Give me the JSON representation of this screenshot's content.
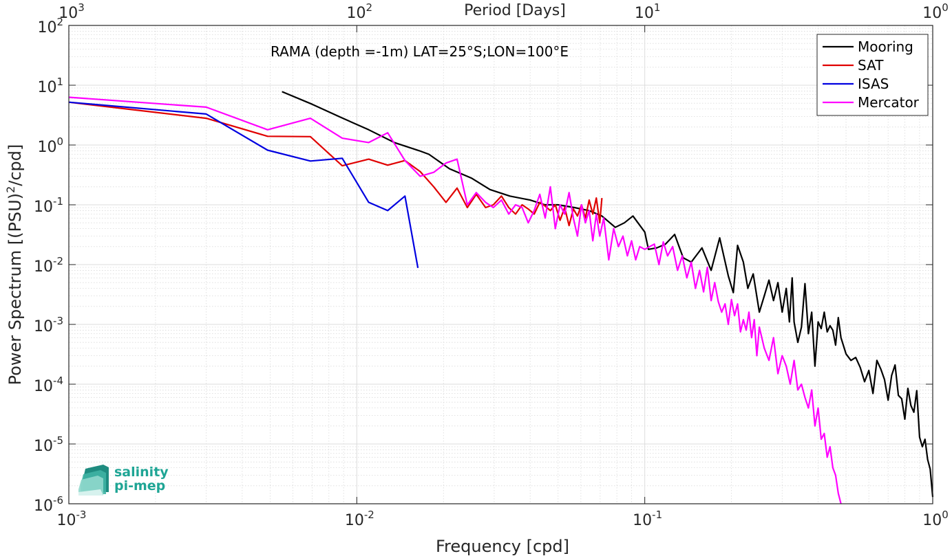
{
  "chart_data": {
    "type": "line",
    "title": "",
    "annotation": "RAMA (depth =-1m) LAT=25°S;LON=100°E",
    "xlabel": "Frequency [cpd]",
    "ylabel_main": "Power Spectrum [(PSU)",
    "ylabel_sup": "2",
    "ylabel_tail": "/cpd]",
    "top_xlabel": "Period [Days]",
    "x_scale": "log",
    "y_scale": "log",
    "xlim": [
      0.001,
      1
    ],
    "ylim": [
      1e-06,
      100
    ],
    "grid": true,
    "legend_position": "top-right",
    "x_ticks": [
      {
        "value": 0.001,
        "base": "10",
        "exp": "-3"
      },
      {
        "value": 0.01,
        "base": "10",
        "exp": "-2"
      },
      {
        "value": 0.1,
        "base": "10",
        "exp": "-1"
      },
      {
        "value": 1,
        "base": "10",
        "exp": "0"
      }
    ],
    "y_ticks": [
      {
        "value": 100,
        "base": "10",
        "exp": "2"
      },
      {
        "value": 10,
        "base": "10",
        "exp": "1"
      },
      {
        "value": 1,
        "base": "10",
        "exp": "0"
      },
      {
        "value": 0.1,
        "base": "10",
        "exp": "-1"
      },
      {
        "value": 0.01,
        "base": "10",
        "exp": "-2"
      },
      {
        "value": 0.001,
        "base": "10",
        "exp": "-3"
      },
      {
        "value": 0.0001,
        "base": "10",
        "exp": "-4"
      },
      {
        "value": 1e-05,
        "base": "10",
        "exp": "-5"
      },
      {
        "value": 1e-06,
        "base": "10",
        "exp": "-6"
      }
    ],
    "top_ticks": [
      {
        "value": 0.001,
        "base": "10",
        "exp": "3"
      },
      {
        "value": 0.01,
        "base": "10",
        "exp": "2"
      },
      {
        "value": 0.1,
        "base": "10",
        "exp": "1"
      },
      {
        "value": 1,
        "base": "10",
        "exp": "0"
      }
    ],
    "series": [
      {
        "name": "Mooring",
        "color": "#000000",
        "x": [
          0.0055,
          0.007,
          0.0088,
          0.011,
          0.0135,
          0.0165,
          0.0178,
          0.021,
          0.025,
          0.029,
          0.034,
          0.04,
          0.045,
          0.05,
          0.057,
          0.064,
          0.071,
          0.079,
          0.085,
          0.091,
          0.1,
          0.103,
          0.11,
          0.118,
          0.127,
          0.136,
          0.145,
          0.158,
          0.17,
          0.182,
          0.195,
          0.203,
          0.21,
          0.22,
          0.228,
          0.238,
          0.25,
          0.26,
          0.27,
          0.28,
          0.29,
          0.3,
          0.31,
          0.318,
          0.325,
          0.33,
          0.34,
          0.35,
          0.36,
          0.37,
          0.38,
          0.39,
          0.4,
          0.41,
          0.42,
          0.43,
          0.44,
          0.45,
          0.46,
          0.47,
          0.48,
          0.5,
          0.52,
          0.54,
          0.56,
          0.58,
          0.6,
          0.62,
          0.64,
          0.66,
          0.68,
          0.7,
          0.72,
          0.74,
          0.76,
          0.78,
          0.8,
          0.82,
          0.84,
          0.86,
          0.88,
          0.9,
          0.92,
          0.94,
          0.96,
          0.98,
          1.0
        ],
        "y": [
          7.8,
          4.8,
          2.9,
          1.8,
          1.1,
          0.8,
          0.7,
          0.4,
          0.28,
          0.18,
          0.14,
          0.12,
          0.1,
          0.1,
          0.09,
          0.08,
          0.065,
          0.042,
          0.05,
          0.065,
          0.035,
          0.018,
          0.019,
          0.022,
          0.032,
          0.013,
          0.011,
          0.019,
          0.008,
          0.028,
          0.0065,
          0.0034,
          0.021,
          0.011,
          0.004,
          0.007,
          0.0016,
          0.003,
          0.0055,
          0.0025,
          0.005,
          0.0016,
          0.004,
          0.0011,
          0.006,
          0.0011,
          0.0005,
          0.0009,
          0.0048,
          0.0007,
          0.0016,
          0.0002,
          0.0011,
          0.00085,
          0.0016,
          0.00075,
          0.00095,
          0.0008,
          0.00045,
          0.0013,
          0.0006,
          0.00032,
          0.00025,
          0.00028,
          0.00019,
          0.00011,
          0.00017,
          7e-05,
          0.00025,
          0.00018,
          0.00012,
          5.4e-05,
          0.00014,
          0.00021,
          6.5e-05,
          5.7e-05,
          2.6e-05,
          8.5e-05,
          4.4e-05,
          3.4e-05,
          7.8e-05,
          1.3e-05,
          9e-06,
          1.2e-05,
          5.5e-06,
          3.8e-06,
          1.3e-06
        ]
      },
      {
        "name": "SAT",
        "color": "#e00000",
        "x": [
          0.001,
          0.003,
          0.0049,
          0.0069,
          0.0089,
          0.011,
          0.0128,
          0.0147,
          0.0166,
          0.0185,
          0.0204,
          0.0223,
          0.0242,
          0.026,
          0.028,
          0.0298,
          0.0318,
          0.0337,
          0.0356,
          0.0375,
          0.0394,
          0.0413,
          0.0432,
          0.0451,
          0.047,
          0.0489,
          0.0508,
          0.0527,
          0.0546,
          0.0565,
          0.0584,
          0.0603,
          0.0622,
          0.0641,
          0.066,
          0.0679,
          0.0698,
          0.071
        ],
        "y": [
          5.2,
          2.8,
          1.4,
          1.38,
          0.45,
          0.58,
          0.46,
          0.55,
          0.36,
          0.2,
          0.11,
          0.19,
          0.09,
          0.15,
          0.09,
          0.1,
          0.14,
          0.09,
          0.07,
          0.1,
          0.085,
          0.07,
          0.11,
          0.095,
          0.08,
          0.1,
          0.055,
          0.09,
          0.045,
          0.085,
          0.065,
          0.1,
          0.06,
          0.12,
          0.07,
          0.13,
          0.05,
          0.13
        ]
      },
      {
        "name": "ISAS",
        "color": "#0000e0",
        "x": [
          0.001,
          0.003,
          0.0049,
          0.0069,
          0.0089,
          0.011,
          0.0128,
          0.0147,
          0.0163
        ],
        "y": [
          5.2,
          3.3,
          0.82,
          0.54,
          0.6,
          0.11,
          0.08,
          0.14,
          0.0088
        ]
      },
      {
        "name": "Mercator",
        "color": "#ff00ff",
        "x": [
          0.001,
          0.003,
          0.0049,
          0.0069,
          0.0089,
          0.011,
          0.0128,
          0.0147,
          0.0166,
          0.0185,
          0.0204,
          0.0223,
          0.0242,
          0.026,
          0.028,
          0.0298,
          0.0318,
          0.0337,
          0.0356,
          0.0375,
          0.0394,
          0.0413,
          0.0432,
          0.0451,
          0.047,
          0.0489,
          0.0508,
          0.0527,
          0.0546,
          0.0565,
          0.0584,
          0.0603,
          0.0622,
          0.0641,
          0.066,
          0.0679,
          0.0698,
          0.072,
          0.075,
          0.078,
          0.081,
          0.084,
          0.087,
          0.09,
          0.093,
          0.096,
          0.1,
          0.104,
          0.108,
          0.112,
          0.116,
          0.12,
          0.125,
          0.13,
          0.135,
          0.14,
          0.145,
          0.15,
          0.155,
          0.16,
          0.165,
          0.17,
          0.175,
          0.18,
          0.185,
          0.19,
          0.195,
          0.2,
          0.205,
          0.21,
          0.215,
          0.22,
          0.225,
          0.23,
          0.235,
          0.24,
          0.245,
          0.25,
          0.26,
          0.27,
          0.28,
          0.29,
          0.3,
          0.31,
          0.32,
          0.33,
          0.34,
          0.35,
          0.36,
          0.37,
          0.38,
          0.39,
          0.4,
          0.41,
          0.42,
          0.43,
          0.44,
          0.45,
          0.46,
          0.47,
          0.48
        ],
        "y": [
          6.3,
          4.3,
          1.8,
          2.8,
          1.3,
          1.1,
          1.6,
          0.55,
          0.3,
          0.35,
          0.5,
          0.58,
          0.1,
          0.16,
          0.11,
          0.09,
          0.12,
          0.07,
          0.1,
          0.09,
          0.05,
          0.08,
          0.15,
          0.06,
          0.2,
          0.04,
          0.1,
          0.07,
          0.16,
          0.06,
          0.03,
          0.1,
          0.05,
          0.08,
          0.025,
          0.07,
          0.03,
          0.06,
          0.012,
          0.04,
          0.02,
          0.03,
          0.014,
          0.025,
          0.012,
          0.02,
          0.018,
          0.02,
          0.022,
          0.01,
          0.024,
          0.014,
          0.02,
          0.008,
          0.014,
          0.006,
          0.011,
          0.004,
          0.008,
          0.0035,
          0.009,
          0.0025,
          0.005,
          0.0024,
          0.0016,
          0.0022,
          0.001,
          0.0026,
          0.0014,
          0.0022,
          0.00075,
          0.0012,
          0.0008,
          0.0016,
          0.0006,
          0.0012,
          0.0003,
          0.0009,
          0.0004,
          0.00025,
          0.0006,
          0.00015,
          0.0003,
          0.0002,
          0.0001,
          0.00025,
          8e-05,
          0.0001,
          6e-05,
          4e-05,
          8e-05,
          2e-05,
          4e-05,
          1.2e-05,
          1.5e-05,
          6e-06,
          9e-06,
          4e-06,
          3e-06,
          1.5e-06,
          9e-07
        ]
      }
    ]
  },
  "logo": {
    "line1": "salinity",
    "line2": "pi-mep"
  }
}
